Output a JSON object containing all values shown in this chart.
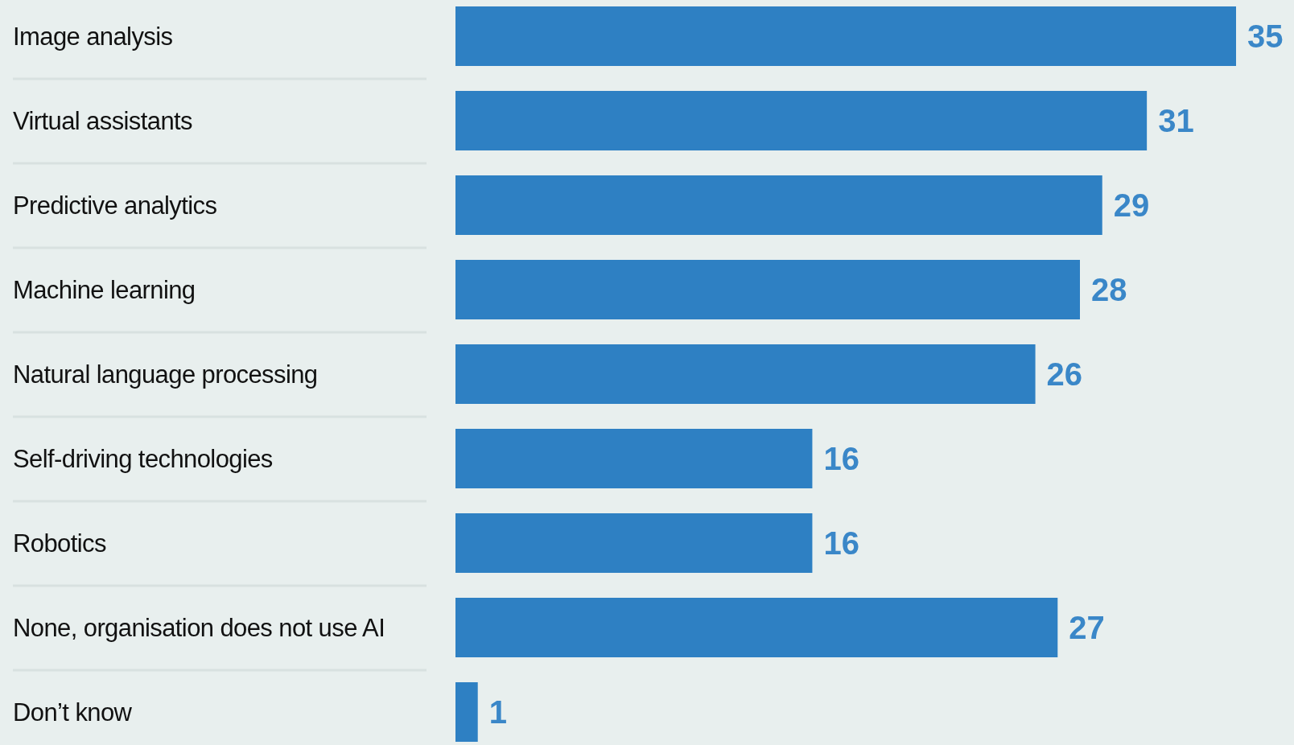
{
  "chart_data": {
    "type": "bar",
    "orientation": "horizontal",
    "categories": [
      "Image analysis",
      "Virtual assistants",
      "Predictive analytics",
      "Machine learning",
      "Natural language processing",
      "Self-driving technologies",
      "Robotics",
      "None, organisation does not use AI",
      "Don’t know"
    ],
    "values": [
      35,
      31,
      29,
      28,
      26,
      16,
      16,
      27,
      1
    ],
    "color": "#2e80c3",
    "data_labels": true
  }
}
